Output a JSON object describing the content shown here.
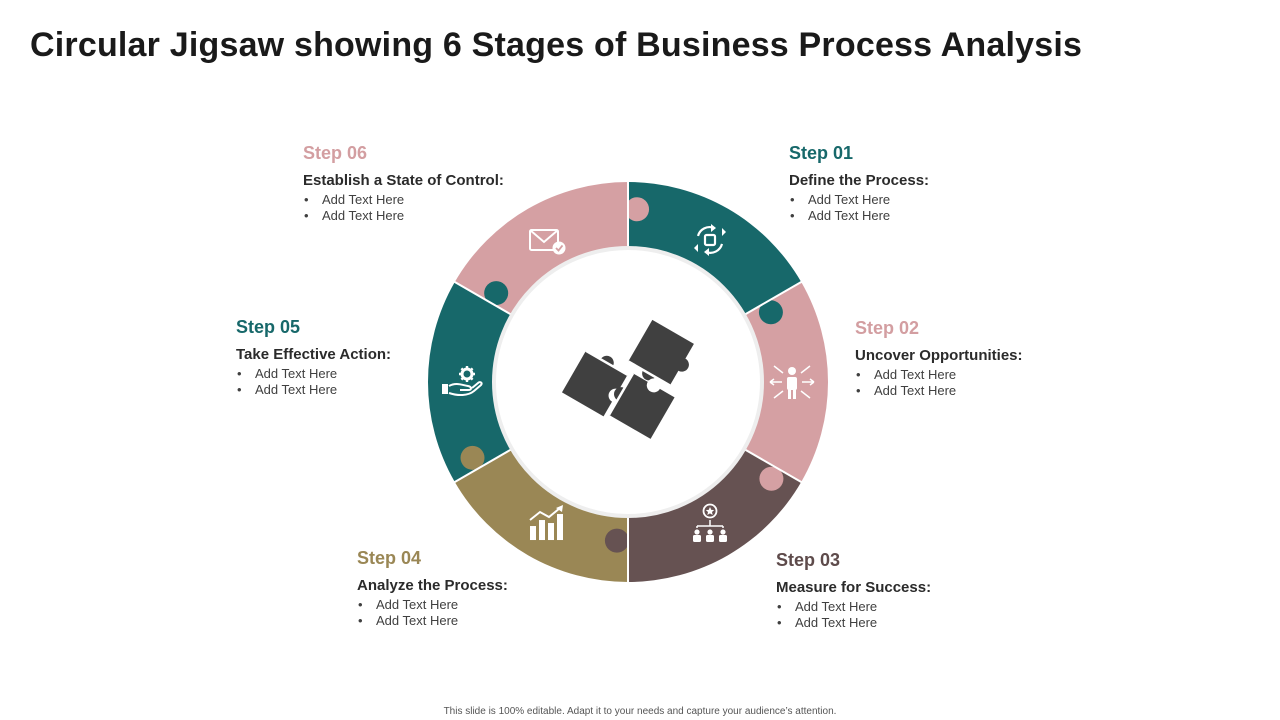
{
  "title": "Circular Jigsaw showing 6 Stages of Business Process Analysis",
  "colors": {
    "teal": "#17686a",
    "pink": "#d5a0a3",
    "brown": "#665252",
    "olive": "#9a8755",
    "center_puzzle": "#404040"
  },
  "steps": [
    {
      "heading": "Step 01",
      "subtitle": "Define the Process:",
      "bullets": [
        "Add Text Here",
        "Add Text Here"
      ],
      "color": "#17686a",
      "heading_color": "#17686a",
      "icon": "process-cycle-icon"
    },
    {
      "heading": "Step 02",
      "subtitle": "Uncover Opportunities:",
      "bullets": [
        "Add Text Here",
        "Add Text Here"
      ],
      "color": "#d5a0a3",
      "heading_color": "#d39ea1",
      "icon": "person-arrows-icon"
    },
    {
      "heading": "Step 03",
      "subtitle": "Measure for Success:",
      "bullets": [
        "Add Text Here",
        "Add Text Here"
      ],
      "color": "#665252",
      "heading_color": "#5e4b4b",
      "icon": "team-star-icon"
    },
    {
      "heading": "Step 04",
      "subtitle": "Analyze the Process:",
      "bullets": [
        "Add Text Here",
        "Add Text Here"
      ],
      "color": "#9a8755",
      "heading_color": "#9a8755",
      "icon": "bar-chart-growth-icon"
    },
    {
      "heading": "Step 05",
      "subtitle": "Take Effective Action:",
      "bullets": [
        "Add Text Here",
        "Add Text Here"
      ],
      "color": "#17686a",
      "heading_color": "#17686a",
      "icon": "hand-gear-icon"
    },
    {
      "heading": "Step 06",
      "subtitle": "Establish a State of Control:",
      "bullets": [
        "Add Text Here",
        "Add Text Here"
      ],
      "color": "#d5a0a3",
      "heading_color": "#d39ea1",
      "icon": "envelope-check-icon"
    }
  ],
  "footer": "This slide is 100% editable. Adapt it to your needs and capture your audience’s attention."
}
